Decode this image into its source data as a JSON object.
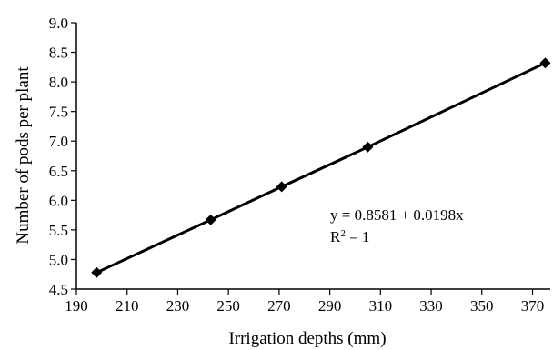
{
  "chart_data": {
    "type": "line",
    "title": "",
    "xlabel": "Irrigation depths (mm)",
    "ylabel": "Number of pods per plant",
    "xlim": [
      190,
      377
    ],
    "ylim": [
      4.5,
      9.0
    ],
    "x_ticks": [
      "190",
      "210",
      "230",
      "250",
      "270",
      "290",
      "310",
      "330",
      "350",
      "370"
    ],
    "y_ticks": [
      "4.5",
      "5.0",
      "5.5",
      "6.0",
      "6.5",
      "7.0",
      "7.5",
      "8.0",
      "8.5",
      "9.0"
    ],
    "grid": false,
    "legend": "none",
    "series": [
      {
        "marker": "diamond",
        "color": "#000000",
        "x": [
          198,
          243,
          271,
          305,
          375
        ],
        "y": [
          4.78,
          5.67,
          6.23,
          6.9,
          8.32
        ]
      }
    ],
    "annotations": {
      "equation": "y = 0.8581 + 0.0198x",
      "r2_prefix": "R",
      "r2_sup": "2",
      "r2_suffix": " = 1"
    }
  }
}
